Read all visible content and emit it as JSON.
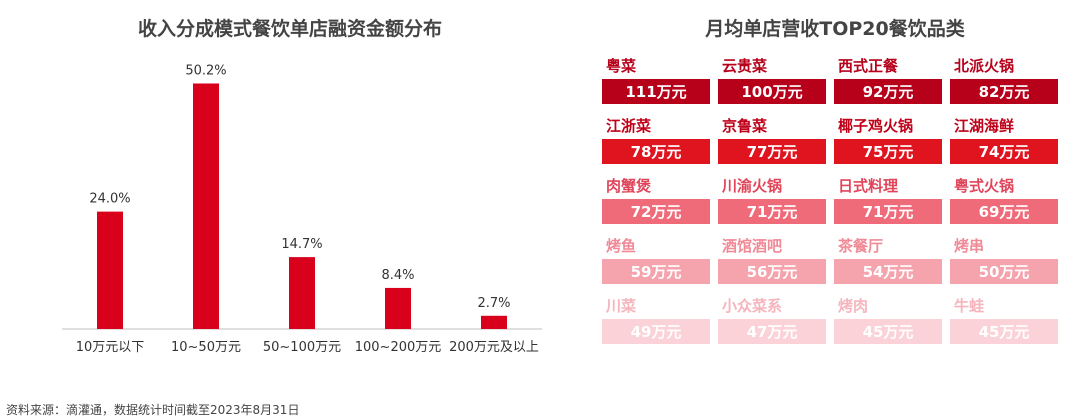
{
  "left_title": "收入分成模式餐饮单店融资金额分布",
  "right_title": "月均单店营收TOP20餐饮品类",
  "source": "资料来源：滴灌通，数据统计时间截至2023年8月31日",
  "colors": {
    "bar": "#d9001b",
    "axis": "#bfbfbf"
  },
  "chart_data": {
    "type": "bar",
    "categories": [
      "10万元以下",
      "10~50万元",
      "50~100万元",
      "100~200万元",
      "200万元及以上"
    ],
    "values": [
      24.0,
      50.2,
      14.7,
      8.4,
      2.7
    ],
    "value_labels": [
      "24.0%",
      "50.2%",
      "14.7%",
      "8.4%",
      "2.7%"
    ],
    "title": "收入分成模式餐饮单店融资金额分布",
    "ylim": [
      0,
      55
    ],
    "grid": false,
    "legend": "none"
  },
  "top20": [
    {
      "name": "粤菜",
      "value": "111万元",
      "tier": 1
    },
    {
      "name": "云贵菜",
      "value": "100万元",
      "tier": 1
    },
    {
      "name": "西式正餐",
      "value": "92万元",
      "tier": 1
    },
    {
      "name": "北派火锅",
      "value": "82万元",
      "tier": 1
    },
    {
      "name": "江浙菜",
      "value": "78万元",
      "tier": 2
    },
    {
      "name": "京鲁菜",
      "value": "77万元",
      "tier": 2
    },
    {
      "name": "椰子鸡火锅",
      "value": "75万元",
      "tier": 2
    },
    {
      "name": "江湖海鲜",
      "value": "74万元",
      "tier": 2
    },
    {
      "name": "肉蟹煲",
      "value": "72万元",
      "tier": 3
    },
    {
      "name": "川渝火锅",
      "value": "71万元",
      "tier": 3
    },
    {
      "name": "日式料理",
      "value": "71万元",
      "tier": 3
    },
    {
      "name": "粤式火锅",
      "value": "69万元",
      "tier": 3
    },
    {
      "name": "烤鱼",
      "value": "59万元",
      "tier": 4
    },
    {
      "name": "酒馆酒吧",
      "value": "56万元",
      "tier": 4
    },
    {
      "name": "茶餐厅",
      "value": "54万元",
      "tier": 4
    },
    {
      "name": "烤串",
      "value": "50万元",
      "tier": 4
    },
    {
      "name": "川菜",
      "value": "49万元",
      "tier": 5
    },
    {
      "name": "小众菜系",
      "value": "47万元",
      "tier": 5
    },
    {
      "name": "烤肉",
      "value": "45万元",
      "tier": 5
    },
    {
      "name": "牛蛙",
      "value": "45万元",
      "tier": 5
    }
  ],
  "tier_styles": {
    "1": {
      "box": "#b7001a",
      "name": "#b7001a",
      "border": "#b7001a"
    },
    "2": {
      "box": "#e0141f",
      "name": "#c00018",
      "border": "#e0141f"
    },
    "3": {
      "box": "#ef6b7a",
      "name": "#e0455a",
      "border": "#ef6b7a"
    },
    "4": {
      "box": "#f5a3ad",
      "name": "#f08a97",
      "border": "#f5a3ad"
    },
    "5": {
      "box": "#fbd2d7",
      "name": "#f6b4bd",
      "border": "#fbd2d7"
    }
  }
}
